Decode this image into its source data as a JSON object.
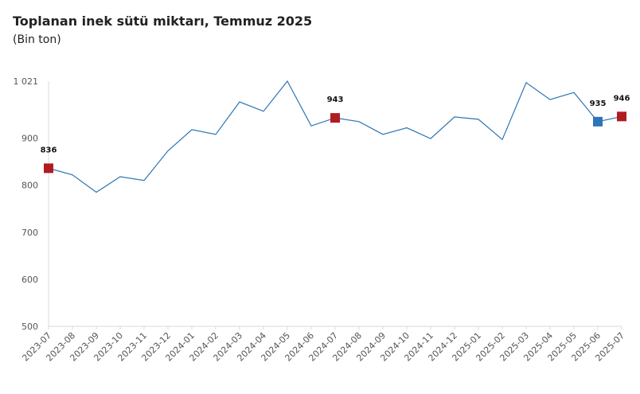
{
  "header": {
    "title": "Toplanan inek sütü miktarı, Temmuz 2025",
    "subtitle": "(Bin ton)"
  },
  "chart_data": {
    "type": "line",
    "x": [
      "2023-07",
      "2023-08",
      "2023-09",
      "2023-10",
      "2023-11",
      "2023-12",
      "2024-01",
      "2024-02",
      "2024-03",
      "2024-04",
      "2024-05",
      "2024-06",
      "2024-07",
      "2024-08",
      "2024-09",
      "2024-10",
      "2024-11",
      "2024-12",
      "2025-01",
      "2025-02",
      "2025-03",
      "2025-04",
      "2025-05",
      "2025-06",
      "2025-07"
    ],
    "series": [
      {
        "values": [
          836,
          822,
          785,
          818,
          810,
          873,
          918,
          908,
          977,
          957,
          1021,
          926,
          943,
          935,
          908,
          922,
          899,
          945,
          940,
          897,
          1018,
          982,
          997,
          935,
          946
        ],
        "color": "#2e75b6"
      }
    ],
    "yticks": [
      500,
      600,
      700,
      800,
      900,
      1021
    ],
    "ytick_labels": [
      "500",
      "600",
      "700",
      "800",
      "900",
      "1 021"
    ],
    "ylim": [
      500,
      1021
    ],
    "highlighted_points": [
      {
        "index": 0,
        "label": "836",
        "color": "#b01c22"
      },
      {
        "index": 12,
        "label": "943",
        "color": "#b01c22"
      },
      {
        "index": 23,
        "label": "935",
        "color": "#2e75b6"
      },
      {
        "index": 24,
        "label": "946",
        "color": "#b01c22"
      }
    ],
    "grid": false,
    "xlabel": "",
    "ylabel": ""
  }
}
